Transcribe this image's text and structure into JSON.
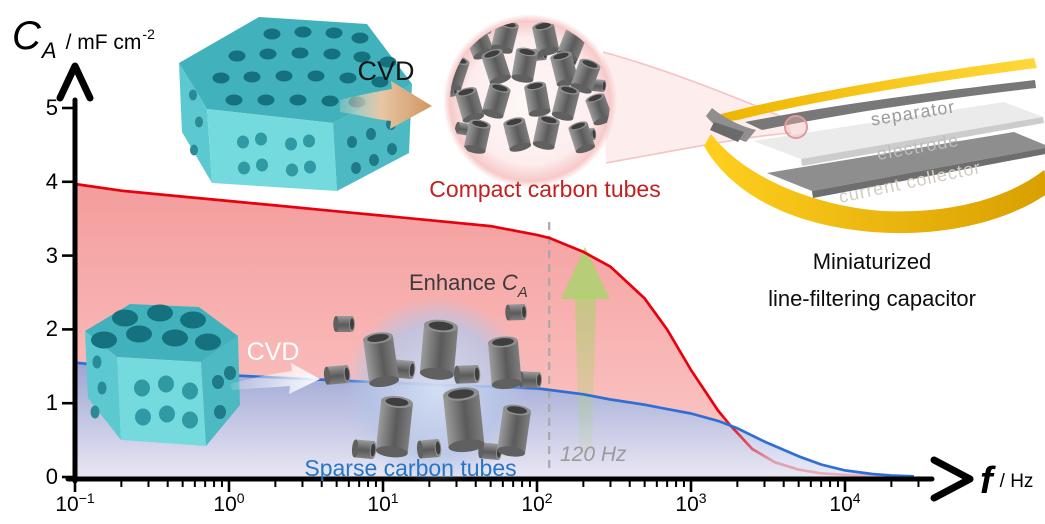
{
  "figure": {
    "y_axis": {
      "symbol": "C",
      "subscript": "A",
      "unit_prefix": "/ mF cm",
      "unit_exponent": "-2"
    },
    "x_axis": {
      "symbol": "f",
      "unit": "/ Hz"
    },
    "labels": {
      "cvd_top": "CVD",
      "cvd_bottom": "CVD",
      "compact": "Compact carbon tubes",
      "sparse": "Sparse carbon tubes",
      "enhance_prefix": "Enhance",
      "enhance_symbol": "C",
      "enhance_subscript": "A",
      "freq_marker": "120 Hz",
      "device_line1": "Miniaturized",
      "device_line2": "line-filtering capacitor"
    },
    "capacitor_layers": [
      "separator",
      "electrode",
      "current collector"
    ],
    "colors": {
      "compact_line": "#e8000d",
      "compact_text": "#c32020",
      "sparse_line": "#2f6fd4",
      "sparse_text": "#2776c6",
      "marker_gray": "#9a9a9a",
      "enhance_arrow_green": "#a8d46c",
      "template_teal": "#5ecdd4",
      "collector_gold": "#f2c400"
    }
  },
  "chart_data": {
    "type": "line",
    "x_scale": "log",
    "xlim": [
      0.1,
      30000
    ],
    "ylim": [
      0,
      5
    ],
    "y_ticks": [
      0,
      1,
      2,
      3,
      4,
      5
    ],
    "x_tick_base": "10",
    "x_tick_exponents": [
      -1,
      0,
      1,
      2,
      3,
      4
    ],
    "xlabel": "f / Hz",
    "ylabel": "CA / mF cm-2",
    "grid": false,
    "legend_position": "none",
    "annotations": {
      "dashed_line_hz": 120,
      "dashed_label": "120 Hz"
    },
    "series": [
      {
        "name": "Compact carbon tubes",
        "color": "#e8000d",
        "points": [
          [
            0.1,
            3.97
          ],
          [
            0.2,
            3.88
          ],
          [
            0.5,
            3.8
          ],
          [
            1,
            3.74
          ],
          [
            2,
            3.68
          ],
          [
            5,
            3.6
          ],
          [
            10,
            3.54
          ],
          [
            20,
            3.48
          ],
          [
            50,
            3.4
          ],
          [
            100,
            3.28
          ],
          [
            120,
            3.24
          ],
          [
            200,
            3.05
          ],
          [
            300,
            2.85
          ],
          [
            500,
            2.42
          ],
          [
            700,
            2.0
          ],
          [
            1000,
            1.45
          ],
          [
            1500,
            0.9
          ],
          [
            1800,
            0.7
          ],
          [
            2500,
            0.38
          ],
          [
            3500,
            0.2
          ],
          [
            5000,
            0.1
          ],
          [
            7000,
            0.05
          ],
          [
            10000,
            0.03
          ],
          [
            20000,
            0.01
          ]
        ]
      },
      {
        "name": "Sparse carbon tubes",
        "color": "#2f6fd4",
        "points": [
          [
            0.1,
            1.55
          ],
          [
            0.3,
            1.45
          ],
          [
            1,
            1.38
          ],
          [
            3,
            1.33
          ],
          [
            10,
            1.28
          ],
          [
            30,
            1.24
          ],
          [
            100,
            1.2
          ],
          [
            120,
            1.18
          ],
          [
            200,
            1.12
          ],
          [
            300,
            1.05
          ],
          [
            500,
            0.98
          ],
          [
            700,
            0.92
          ],
          [
            1000,
            0.86
          ],
          [
            1500,
            0.76
          ],
          [
            2000,
            0.66
          ],
          [
            3000,
            0.48
          ],
          [
            5000,
            0.28
          ],
          [
            7000,
            0.17
          ],
          [
            10000,
            0.09
          ],
          [
            15000,
            0.04
          ],
          [
            20000,
            0.02
          ],
          [
            28000,
            0.01
          ]
        ]
      }
    ]
  }
}
